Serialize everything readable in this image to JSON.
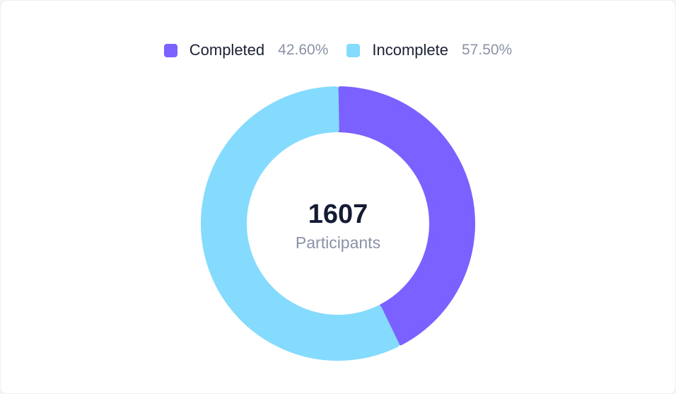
{
  "chart_data": {
    "type": "pie",
    "style": "donut",
    "series": [
      {
        "name": "Completed",
        "value_label": "42.60%",
        "value": 42.6,
        "color": "#7b61ff"
      },
      {
        "name": "Incomplete",
        "value_label": "57.50%",
        "value": 57.5,
        "color": "#84dbfd"
      }
    ],
    "center": {
      "value": "1607",
      "label": "Participants"
    },
    "legend_position": "top-center"
  }
}
